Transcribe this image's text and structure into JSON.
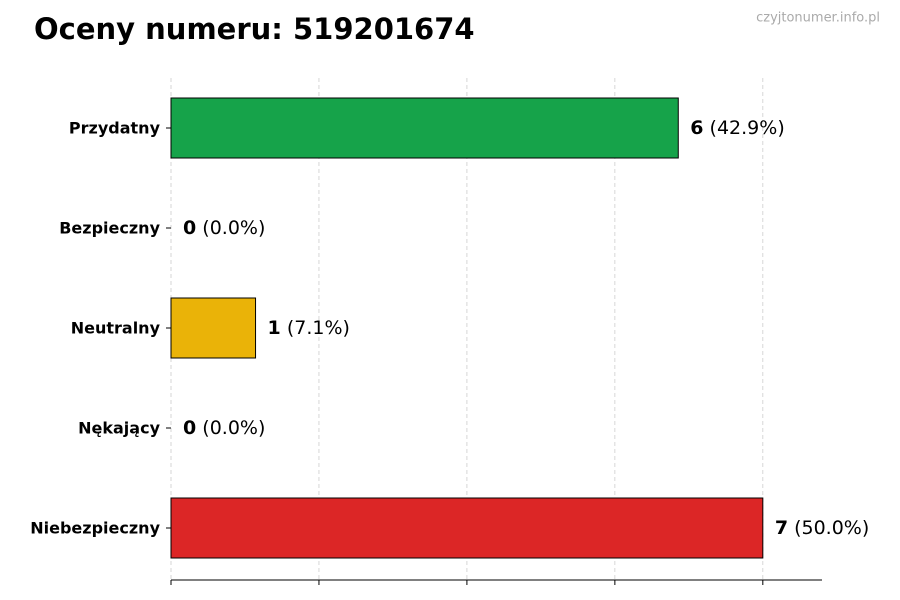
{
  "chart_data": {
    "type": "barh",
    "title": "Oceny numeru: 519201674",
    "watermark": "czyjtonumer.info.pl",
    "categories": [
      "Przydatny",
      "Bezpieczny",
      "Neutralny",
      "Nękający",
      "Niebezpieczny"
    ],
    "values": [
      6,
      0,
      1,
      0,
      7
    ],
    "percentages": [
      42.9,
      0.0,
      7.1,
      0.0,
      50.0
    ],
    "percentage_labels": [
      "(42.9%)",
      "(0.0%)",
      "(7.1%)",
      "(0.0%)",
      "(50.0%)"
    ],
    "colors": [
      "#16a34a",
      "#6b7280",
      "#eab308",
      "#7c3aed",
      "#dc2626"
    ],
    "xlim": [
      0,
      7.7
    ],
    "xticks": [
      0,
      1.75,
      3.5,
      5.25,
      7
    ],
    "grid": true
  }
}
